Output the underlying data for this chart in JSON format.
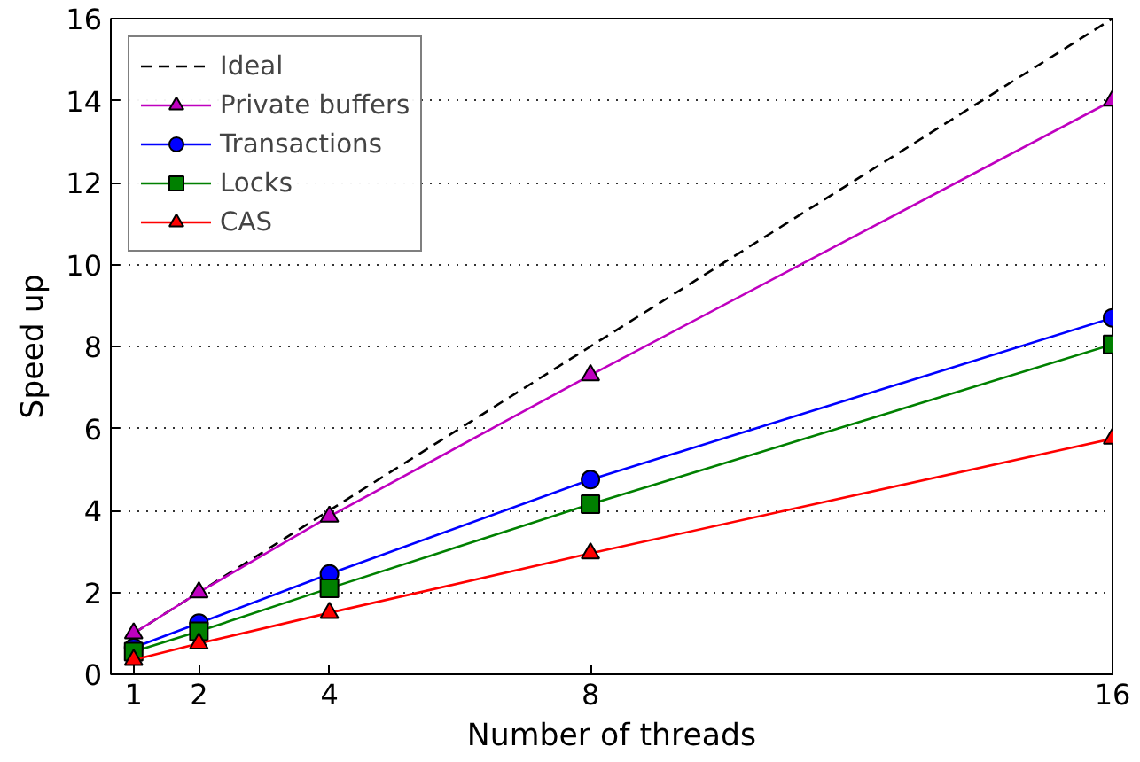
{
  "chart_data": {
    "type": "line",
    "xlabel": "Number of threads",
    "ylabel": "Speed up",
    "x": [
      1,
      2,
      4,
      8,
      16
    ],
    "xlim": [
      0.65,
      16
    ],
    "xticks": [
      1,
      2,
      4,
      8,
      16
    ],
    "ylim": [
      0,
      16
    ],
    "yticks": [
      0,
      2,
      4,
      6,
      8,
      10,
      12,
      14,
      16
    ],
    "grid": "y",
    "legend": "top left",
    "series": [
      {
        "name": "Ideal",
        "color": "#000000",
        "values": [
          1,
          2,
          4,
          8,
          16
        ],
        "marker": "none",
        "line_style": "dashed"
      },
      {
        "name": "Private buffers",
        "color": "#bf00bf",
        "values": [
          1.0,
          2.0,
          3.85,
          7.3,
          14.0
        ],
        "marker": "triangle"
      },
      {
        "name": "Transactions",
        "color": "#0000ff",
        "values": [
          0.65,
          1.25,
          2.45,
          4.75,
          8.7
        ],
        "marker": "circle"
      },
      {
        "name": "Locks",
        "color": "#008000",
        "values": [
          0.55,
          1.05,
          2.1,
          4.15,
          8.05
        ],
        "marker": "square"
      },
      {
        "name": "CAS",
        "color": "#ff0000",
        "values": [
          0.35,
          0.75,
          1.5,
          2.95,
          5.75
        ],
        "marker": "triangle"
      }
    ]
  }
}
